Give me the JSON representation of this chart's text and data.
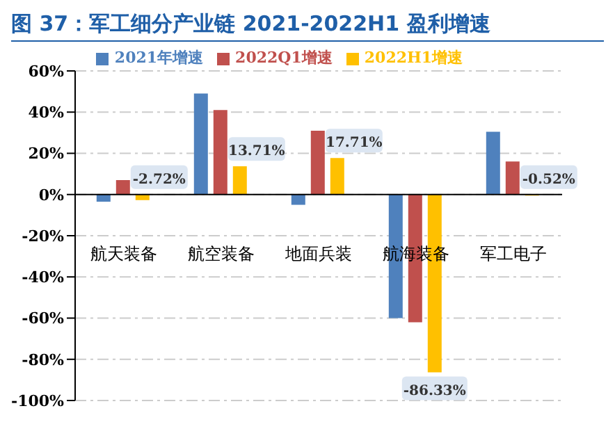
{
  "chart_data": {
    "type": "bar",
    "title": "图 37：军工细分产业链 2021-2022H1 盈利增速",
    "categories": [
      "航天装备",
      "航空装备",
      "地面兵装",
      "航海装备",
      "军工电子"
    ],
    "series": [
      {
        "name": "2021年增速",
        "color": "#4f81bd",
        "values": [
          -3.5,
          49,
          -5,
          -60,
          30.5
        ]
      },
      {
        "name": "2022Q1增速",
        "color": "#c0504d",
        "values": [
          7,
          41,
          31,
          -62,
          16
        ]
      },
      {
        "name": "2022H1增速",
        "color": "#ffc000",
        "values": [
          -2.72,
          13.71,
          17.71,
          -86.33,
          -0.52
        ],
        "value_labels": [
          "-2.72%",
          "13.71%",
          "17.71%",
          "-86.33%",
          "-0.52%"
        ]
      }
    ],
    "ylim": [
      -100,
      60
    ],
    "yticks": [
      {
        "value": -100,
        "label": "-100%"
      },
      {
        "value": -80,
        "label": "-80%"
      },
      {
        "value": -60,
        "label": "-60%"
      },
      {
        "value": -40,
        "label": "-40%"
      },
      {
        "value": -20,
        "label": "-20%"
      },
      {
        "value": 0,
        "label": "0%"
      },
      {
        "value": 20,
        "label": "20%"
      },
      {
        "value": 40,
        "label": "40%"
      },
      {
        "value": 60,
        "label": "60%"
      }
    ],
    "grid": "y",
    "legend": "top"
  }
}
